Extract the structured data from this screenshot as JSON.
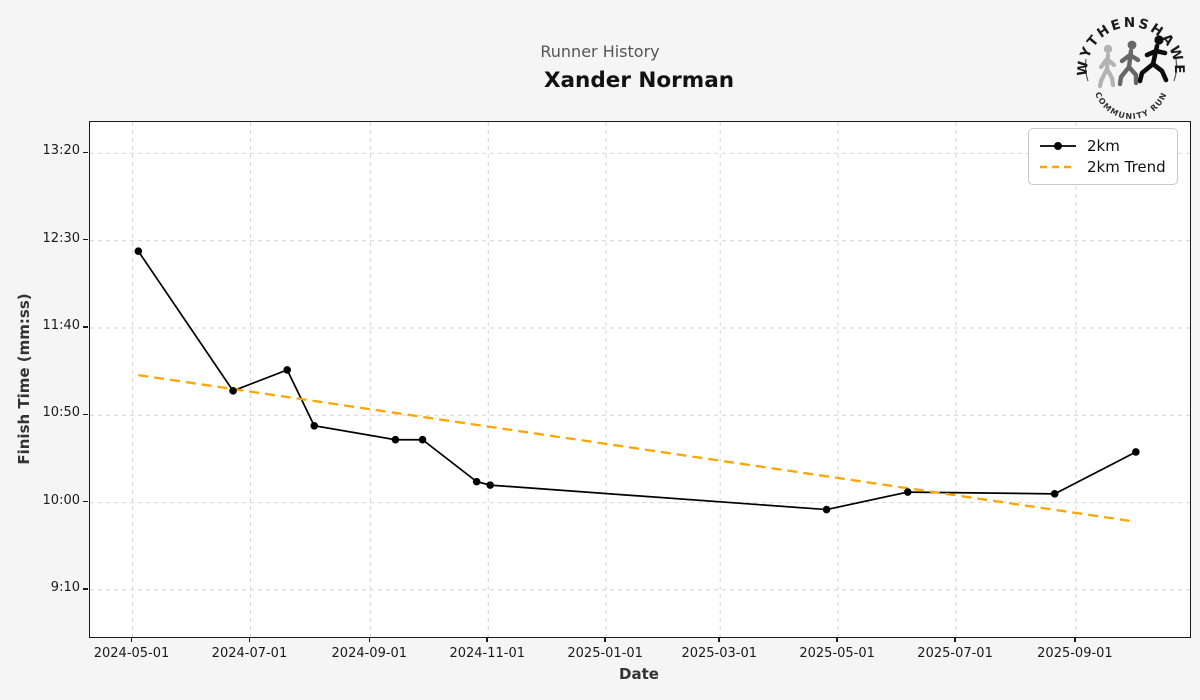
{
  "header": {
    "suptitle": "Runner History",
    "title": "Xander Norman"
  },
  "logo": {
    "top_text": "WYTHENSHAWE",
    "bottom_text": "COMMUNITY RUN"
  },
  "chart_data": {
    "type": "line",
    "suptitle": "Runner History",
    "title": "Xander Norman",
    "xlabel": "Date",
    "ylabel": "Finish Time (mm:ss)",
    "grid": true,
    "legend_position": "upper right",
    "x_ticks": [
      "2024-05-01",
      "2024-07-01",
      "2024-09-01",
      "2024-11-01",
      "2025-01-01",
      "2025-03-01",
      "2025-05-01",
      "2025-07-01",
      "2025-09-01"
    ],
    "y_ticks": [
      {
        "label": "9:10",
        "seconds": 550
      },
      {
        "label": "10:00",
        "seconds": 600
      },
      {
        "label": "10:50",
        "seconds": 650
      },
      {
        "label": "11:40",
        "seconds": 700
      },
      {
        "label": "12:30",
        "seconds": 750
      },
      {
        "label": "13:20",
        "seconds": 800
      }
    ],
    "xlim": [
      "2024-04-09",
      "2025-10-30"
    ],
    "ylim_seconds": [
      523,
      818
    ],
    "series": [
      {
        "name": "2km",
        "style": "solid-with-markers",
        "color": "#000000",
        "points": [
          {
            "date": "2024-05-04",
            "time": "12:24"
          },
          {
            "date": "2024-06-22",
            "time": "11:04"
          },
          {
            "date": "2024-07-20",
            "time": "11:16"
          },
          {
            "date": "2024-08-03",
            "time": "10:44"
          },
          {
            "date": "2024-09-14",
            "time": "10:36"
          },
          {
            "date": "2024-09-28",
            "time": "10:36"
          },
          {
            "date": "2024-10-26",
            "time": "10:12"
          },
          {
            "date": "2024-11-02",
            "time": "10:10"
          },
          {
            "date": "2025-04-25",
            "time": "9:56"
          },
          {
            "date": "2025-06-06",
            "time": "10:06"
          },
          {
            "date": "2025-08-21",
            "time": "10:05"
          },
          {
            "date": "2025-10-02",
            "time": "10:29"
          }
        ]
      },
      {
        "name": "2km Trend",
        "style": "dashed",
        "color": "#FFA500",
        "points": [
          {
            "date": "2024-05-04",
            "time": "11:13"
          },
          {
            "date": "2025-10-02",
            "time": "9:49"
          }
        ]
      }
    ],
    "colors": {
      "figure_bg": "#f5f5f5",
      "plot_bg": "#ffffff",
      "grid": "#d4d4d4",
      "spine": "#1a1a1a",
      "suptitle": "#555555",
      "title": "#111111",
      "series": "#000000",
      "trend": "#FFA500"
    }
  }
}
